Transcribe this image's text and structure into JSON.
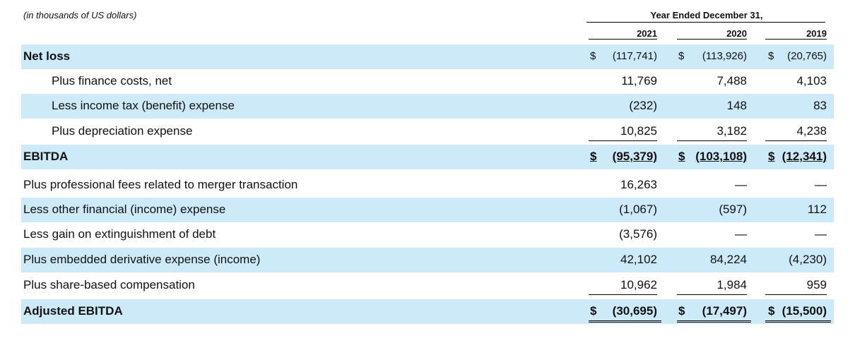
{
  "header": {
    "note": "(in thousands of US dollars)",
    "period": "Year Ended December 31,",
    "columns": [
      "2021",
      "2020",
      "2019"
    ]
  },
  "table": {
    "rows": [
      {
        "label": "Net loss",
        "symbols": [
          "$",
          "$",
          "$"
        ],
        "cells": [
          "(117,741)",
          "(113,926)",
          "(20,765)"
        ]
      },
      {
        "label": "Plus finance costs, net",
        "cells": [
          "11,769",
          "7,488",
          "4,103"
        ]
      },
      {
        "label": "Less income tax (benefit) expense",
        "cells": [
          "(232)",
          "148",
          "83"
        ]
      },
      {
        "label": "Plus depreciation expense",
        "cells": [
          "10,825",
          "3,182",
          "4,238"
        ]
      },
      {
        "label": "EBITDA",
        "symbols": [
          "$",
          "$",
          "$"
        ],
        "cells": [
          "(95,379)",
          "(103,108)",
          "(12,341)"
        ]
      },
      {
        "label": "Plus professional fees related to merger transaction",
        "cells": [
          "16,263",
          "—",
          "—"
        ]
      },
      {
        "label": "Less other financial (income) expense",
        "cells": [
          "(1,067)",
          "(597)",
          "112"
        ]
      },
      {
        "label": "Less gain on extinguishment of debt",
        "cells": [
          "(3,576)",
          "—",
          "—"
        ]
      },
      {
        "label": "Plus embedded derivative expense (income)",
        "cells": [
          "42,102",
          "84,224",
          "(4,230)"
        ]
      },
      {
        "label": "Plus share-based compensation",
        "cells": [
          "10,962",
          "1,984",
          "959"
        ]
      },
      {
        "label": "Adjusted EBITDA",
        "symbols": [
          "$",
          "$",
          "$"
        ],
        "cells": [
          "(30,695)",
          "(17,497)",
          "(15,500)"
        ]
      }
    ]
  }
}
